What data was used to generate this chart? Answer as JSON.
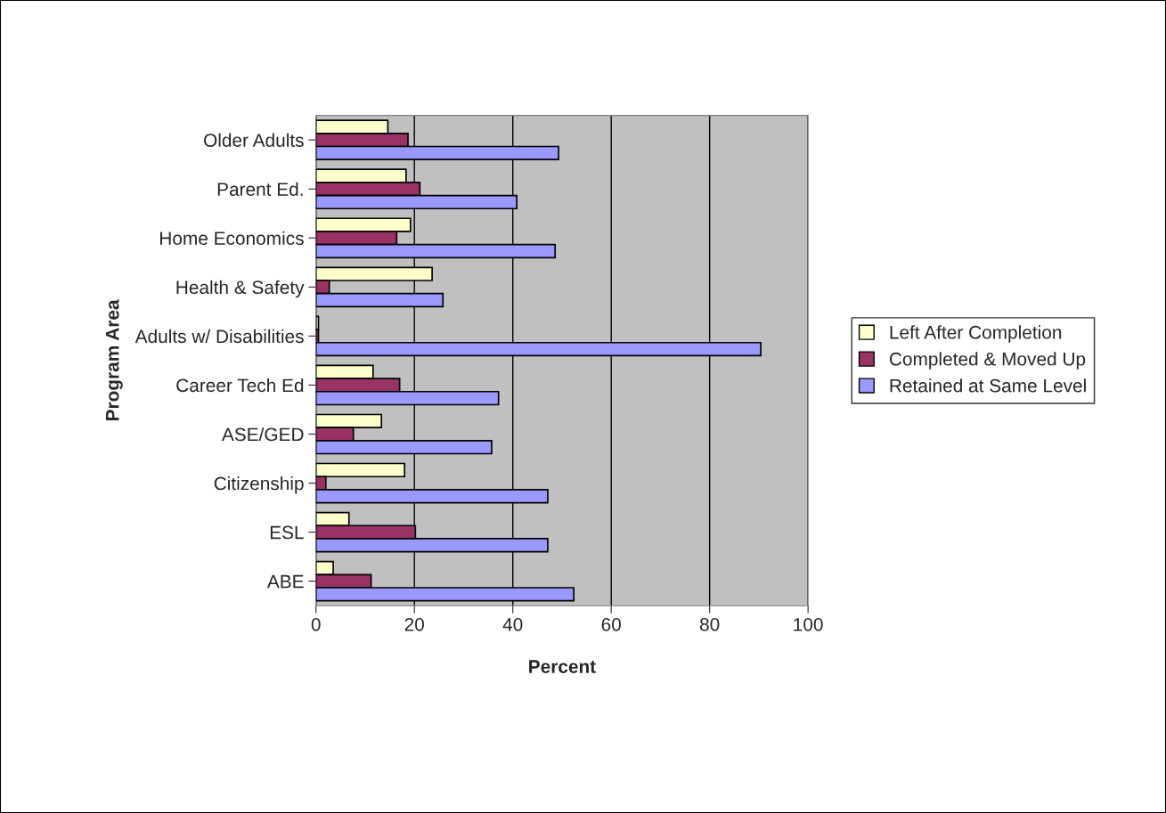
{
  "chart_data": {
    "type": "bar",
    "orientation": "horizontal",
    "xlabel": "Percent",
    "ylabel": "Program Area",
    "categories": [
      "Older Adults",
      "Parent Ed.",
      "Home Economics",
      "Health & Safety",
      "Adults w/ Disabilities",
      "Career Tech Ed",
      "ASE/GED",
      "Citizenship",
      "ESL",
      "ABE"
    ],
    "series": [
      {
        "name": "Left After Completion",
        "color": "#ffffcc",
        "values": [
          14.6,
          18.3,
          19.2,
          23.6,
          0.5,
          11.6,
          13.3,
          18.0,
          6.7,
          3.5
        ]
      },
      {
        "name": "Completed & Moved Up",
        "color": "#993366",
        "values": [
          18.7,
          21.1,
          16.4,
          2.7,
          0.5,
          17.0,
          7.6,
          2.0,
          20.2,
          11.2
        ]
      },
      {
        "name": "Retained at Same Level",
        "color": "#9999ff",
        "values": [
          49.3,
          40.8,
          48.6,
          25.8,
          90.4,
          37.1,
          35.7,
          47.1,
          47.1,
          52.4
        ]
      }
    ],
    "xlim": [
      0,
      100
    ],
    "xticks": [
      0,
      20,
      40,
      60,
      80,
      100
    ],
    "grid": "x",
    "legend": "right"
  }
}
